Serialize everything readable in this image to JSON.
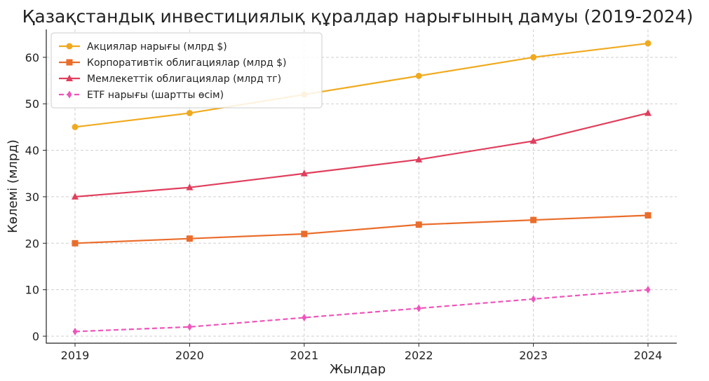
{
  "chart_data": {
    "type": "line",
    "title": "Қазақстандық инвестициялық құралдар нарығының дамуы (2019-2024)",
    "xlabel": "Жылдар",
    "ylabel": "Көлемі (млрд)",
    "x": [
      2019,
      2020,
      2021,
      2022,
      2023,
      2024
    ],
    "x_tick_labels": [
      "2019",
      "2020",
      "2021",
      "2022",
      "2023",
      "2024"
    ],
    "ylim": [
      -1.5,
      66
    ],
    "y_ticks": [
      0,
      10,
      20,
      30,
      40,
      50,
      60
    ],
    "grid": true,
    "legend_position": "top-left",
    "series": [
      {
        "name": "Акциялар нарығы (млрд $)",
        "color": "#f0aa1e",
        "marker": "circle",
        "dashed": false,
        "values": [
          45,
          48,
          52,
          56,
          60,
          63
        ]
      },
      {
        "name": "Корпоративтік облигациялар (млрд $)",
        "color": "#ea6d2b",
        "marker": "square",
        "dashed": false,
        "values": [
          20,
          21,
          22,
          24,
          25,
          26
        ]
      },
      {
        "name": "Мемлекеттік облигациялар (млрд тг)",
        "color": "#e03e5c",
        "marker": "triangle",
        "dashed": false,
        "values": [
          30,
          32,
          35,
          38,
          42,
          48
        ]
      },
      {
        "name": "ETF нарығы (шартты өсім)",
        "color": "#ee55bb",
        "marker": "diamond",
        "dashed": true,
        "values": [
          1,
          2,
          4,
          6,
          8,
          10
        ]
      }
    ]
  }
}
